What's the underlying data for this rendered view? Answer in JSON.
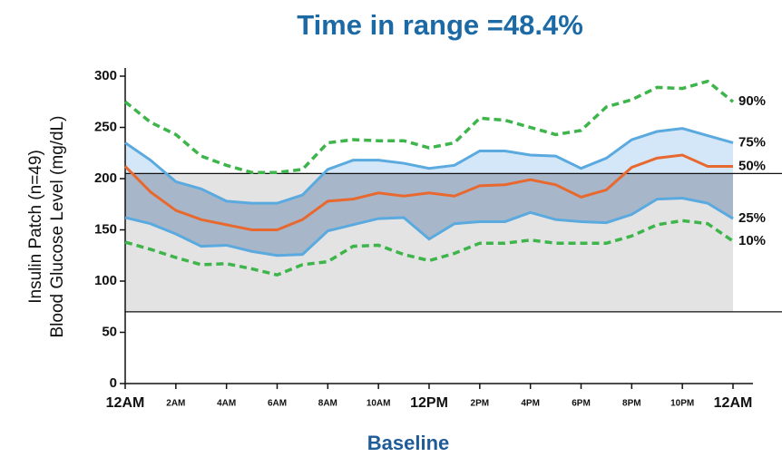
{
  "chart_data": {
    "type": "line",
    "title": "Time in range =48.4%",
    "y_label": [
      "Insulin Patch (n=49)",
      "Blood Glucose Level (mg/dL)"
    ],
    "x_label": "Baseline",
    "x": [
      0,
      1,
      2,
      3,
      4,
      5,
      6,
      7,
      8,
      9,
      10,
      11,
      12,
      13,
      14,
      15,
      16,
      17,
      18,
      19,
      20,
      21,
      22,
      23,
      24
    ],
    "xlim": [
      0,
      24
    ],
    "xticks": [
      {
        "value": 0,
        "label": "12AM"
      },
      {
        "value": 2,
        "label": "2AM"
      },
      {
        "value": 4,
        "label": "4AM"
      },
      {
        "value": 6,
        "label": "6AM"
      },
      {
        "value": 8,
        "label": "8AM"
      },
      {
        "value": 10,
        "label": "10AM"
      },
      {
        "value": 12,
        "label": "12PM"
      },
      {
        "value": 14,
        "label": "2PM"
      },
      {
        "value": 16,
        "label": "4PM"
      },
      {
        "value": 18,
        "label": "6PM"
      },
      {
        "value": 20,
        "label": "8PM"
      },
      {
        "value": 22,
        "label": "10PM"
      },
      {
        "value": 24,
        "label": "12AM"
      }
    ],
    "ylim": [
      0,
      300
    ],
    "yticks": [
      0,
      50,
      100,
      150,
      200,
      250,
      300
    ],
    "reference_lines": [
      70,
      205
    ],
    "series": [
      {
        "name": "90%",
        "color": "#3db54a",
        "dashed": true,
        "values": [
          275,
          255,
          243,
          222,
          213,
          206,
          206,
          209,
          235,
          238,
          237,
          237,
          230,
          235,
          259,
          257,
          250,
          243,
          247,
          270,
          277,
          289,
          288,
          295,
          275
        ]
      },
      {
        "name": "75%",
        "color": "#5aaadf",
        "dashed": false,
        "values": [
          235,
          218,
          197,
          190,
          178,
          176,
          176,
          184,
          209,
          218,
          218,
          215,
          210,
          213,
          227,
          227,
          223,
          222,
          210,
          220,
          238,
          246,
          249,
          242,
          235
        ]
      },
      {
        "name": "50%",
        "color": "#e8692f",
        "dashed": false,
        "values": [
          212,
          187,
          169,
          160,
          155,
          150,
          150,
          160,
          178,
          180,
          186,
          183,
          186,
          183,
          193,
          194,
          199,
          194,
          182,
          189,
          211,
          220,
          223,
          212,
          212
        ]
      },
      {
        "name": "25%",
        "color": "#5aaadf",
        "dashed": false,
        "values": [
          162,
          156,
          146,
          134,
          135,
          129,
          125,
          126,
          149,
          155,
          161,
          162,
          141,
          156,
          158,
          158,
          167,
          160,
          158,
          157,
          165,
          180,
          181,
          176,
          161
        ]
      },
      {
        "name": "10%",
        "color": "#3db54a",
        "dashed": true,
        "values": [
          138,
          131,
          123,
          116,
          117,
          112,
          106,
          116,
          119,
          134,
          135,
          126,
          120,
          127,
          137,
          137,
          140,
          137,
          137,
          137,
          144,
          155,
          159,
          156,
          139
        ]
      }
    ]
  }
}
